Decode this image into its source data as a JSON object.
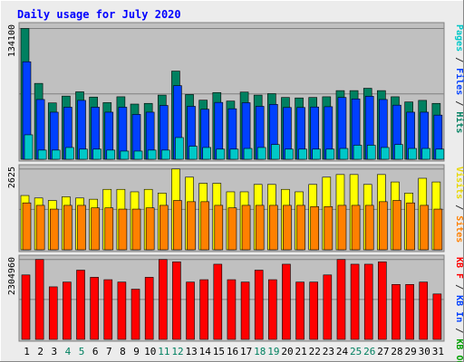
{
  "chart_data": [
    {
      "type": "bar",
      "title": "Daily usage for July 2020",
      "panel": "top",
      "ylabel_parts": [
        {
          "text": "Pages",
          "color": "#00c8c8"
        },
        {
          "text": " / ",
          "color": "#333333"
        },
        {
          "text": "Files",
          "color": "#0040ff"
        },
        {
          "text": " / ",
          "color": "#333333"
        },
        {
          "text": "Hits",
          "color": "#008060"
        }
      ],
      "ymax_label": "134100",
      "ylim": [
        0,
        134100
      ],
      "grid": true,
      "categories": [
        "1",
        "2",
        "3",
        "4",
        "5",
        "6",
        "7",
        "8",
        "9",
        "10",
        "11",
        "12",
        "13",
        "14",
        "15",
        "16",
        "17",
        "18",
        "19",
        "20",
        "21",
        "22",
        "23",
        "24",
        "25",
        "26",
        "27",
        "28",
        "29",
        "30",
        "31"
      ],
      "series": [
        {
          "name": "Hits",
          "color": "#008060",
          "values": [
            134100,
            77800,
            57800,
            64800,
            69200,
            63800,
            58100,
            64100,
            56600,
            57300,
            65800,
            90400,
            66400,
            60600,
            68400,
            59700,
            68900,
            65800,
            67300,
            63400,
            62900,
            63400,
            64100,
            70400,
            70400,
            72800,
            70400,
            64100,
            58800,
            60400,
            57300
          ]
        },
        {
          "name": "Files",
          "color": "#0040ff",
          "values": [
            100000,
            61300,
            48300,
            53400,
            60400,
            53400,
            48300,
            53400,
            46000,
            48300,
            55200,
            75500,
            54300,
            51300,
            58300,
            51800,
            58000,
            54300,
            56300,
            53100,
            53100,
            53600,
            53900,
            63400,
            61900,
            64600,
            61300,
            55500,
            48300,
            48300,
            45300
          ]
        },
        {
          "name": "Pages",
          "color": "#00c8c8",
          "values": [
            25100,
            9400,
            9400,
            12100,
            10400,
            10400,
            9400,
            8400,
            8400,
            9400,
            9400,
            22300,
            13400,
            12100,
            10400,
            10400,
            11100,
            12100,
            15100,
            10400,
            10400,
            10400,
            10400,
            11100,
            14400,
            14400,
            12100,
            15100,
            11100,
            11100,
            10400
          ]
        }
      ]
    },
    {
      "type": "bar",
      "panel": "middle",
      "ylabel_parts": [
        {
          "text": "Visits",
          "color": "#e8d800"
        },
        {
          "text": " / ",
          "color": "#333333"
        },
        {
          "text": "Sites",
          "color": "#ff8000"
        }
      ],
      "ymax_label": "2625",
      "ylim": [
        0,
        2625
      ],
      "grid": true,
      "series": [
        {
          "name": "Visits",
          "color": "#ffff00",
          "values": [
            1764,
            1683,
            1603,
            1723,
            1683,
            1643,
            1964,
            1964,
            1884,
            1964,
            1844,
            2625,
            2360,
            2161,
            2161,
            1884,
            1884,
            2124,
            2124,
            1964,
            1884,
            2124,
            2360,
            2446,
            2446,
            2124,
            2446,
            2204,
            1844,
            2324,
            2204
          ]
        },
        {
          "name": "Sites",
          "color": "#ff8000",
          "values": [
            1524,
            1444,
            1322,
            1444,
            1444,
            1362,
            1362,
            1322,
            1322,
            1362,
            1444,
            1603,
            1563,
            1563,
            1444,
            1362,
            1444,
            1444,
            1444,
            1444,
            1444,
            1404,
            1404,
            1444,
            1444,
            1444,
            1563,
            1603,
            1524,
            1444,
            1322
          ]
        }
      ]
    },
    {
      "type": "bar",
      "panel": "bottom",
      "ylabel_parts": [
        {
          "text": "KB F",
          "color": "#ff0000"
        },
        {
          "text": " / ",
          "color": "#333333"
        },
        {
          "text": "KB In",
          "color": "#0040ff"
        },
        {
          "text": " / ",
          "color": "#333333"
        },
        {
          "text": "KB Out",
          "color": "#00a000"
        }
      ],
      "ymax_label": "2304960",
      "ylim": [
        0,
        2304960
      ],
      "grid": true,
      "series": [
        {
          "name": "KB F",
          "color": "#ff0000",
          "values": [
            1859400,
            2304960,
            1516300,
            1654000,
            1997100,
            1791100,
            1722100,
            1654000,
            1448200,
            1791100,
            2304960,
            2236300,
            1654000,
            1722100,
            2168700,
            1722100,
            1654000,
            1997100,
            1722100,
            2168700,
            1654000,
            1654000,
            1859400,
            2304960,
            2168700,
            2168700,
            2236300,
            1585000,
            1585000,
            1654000,
            1310300
          ]
        }
      ]
    }
  ],
  "colors": {
    "plot_bg": "#c0c0c0",
    "frame_bg": "#ececec",
    "grid": "#808080",
    "title": "#0000ff",
    "xlabel_default": "#000000",
    "xlabel_weekend": "#008060"
  },
  "weekend_days": [
    "4",
    "5",
    "11",
    "12",
    "18",
    "19",
    "25",
    "26"
  ]
}
